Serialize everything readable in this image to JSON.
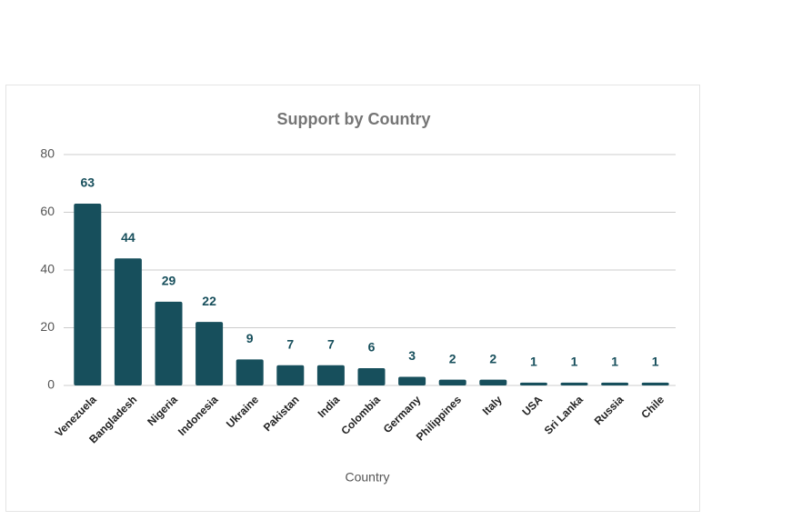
{
  "chart_data": {
    "type": "bar",
    "title": "Support by Country",
    "x_label": "Country",
    "categories": [
      "Venezuela",
      "Bangladesh",
      "Nigeria",
      "Indonesia",
      "Ukraine",
      "Pakistan",
      "India",
      "Colombia",
      "Germany",
      "Philippines",
      "Italy",
      "USA",
      "Sri Lanka",
      "Russia",
      "Chile"
    ],
    "values": [
      63,
      44,
      29,
      22,
      9,
      7,
      7,
      6,
      3,
      2,
      2,
      1,
      1,
      1,
      1
    ],
    "color": "#174f5c",
    "ylim": [
      0,
      80
    ],
    "yticks": [
      0,
      20,
      40,
      60,
      80
    ],
    "grid": true
  }
}
